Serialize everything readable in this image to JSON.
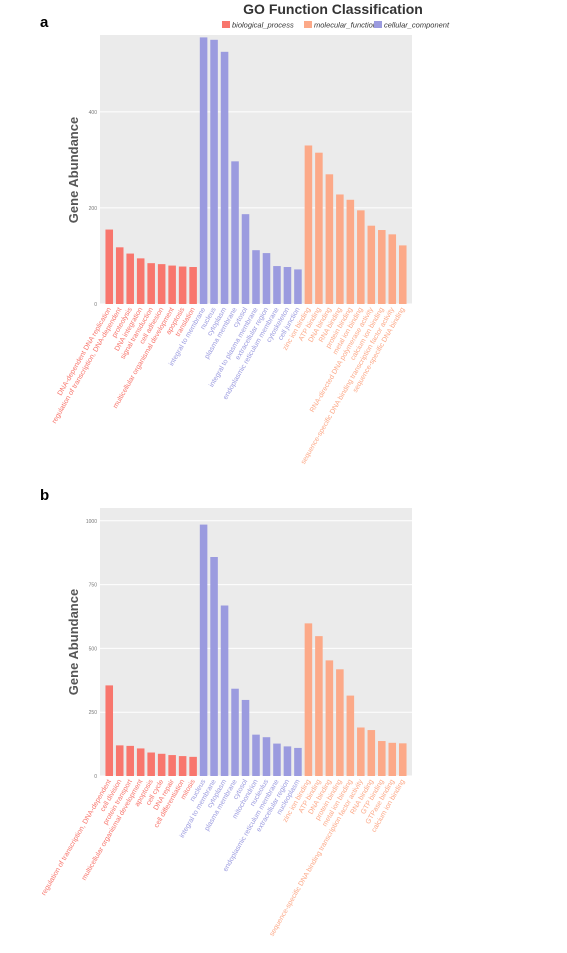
{
  "figure": {
    "title": "GO Function Classification",
    "legend": [
      {
        "name": "biological_process",
        "color": "#F8766D"
      },
      {
        "name": "molecular_function",
        "color": "#FCA988"
      },
      {
        "name": "cellular_component",
        "color": "#9B9BDF"
      }
    ]
  },
  "chart_data": [
    {
      "type": "bar",
      "panel_label": "a",
      "title": "GO Function Classification",
      "xlabel": "",
      "ylabel": "Gene Abundance",
      "ylim": [
        0,
        560
      ],
      "yticks": [
        "0",
        "200",
        "400"
      ],
      "ytick_values": [
        0,
        200,
        400
      ],
      "grid": true,
      "legend_position": "top",
      "series": [
        {
          "name": "biological_process",
          "color": "#F8766D",
          "categories": [
            "DNA-dependent DNA replication",
            "regulation of transcription, DNA-dependent",
            "proteolysis",
            "DNA integration",
            "signal transduction",
            "cell adhesion",
            "multicellular organismal development",
            "apoptosis",
            "translation"
          ],
          "values": [
            155,
            118,
            105,
            95,
            85,
            83,
            80,
            78,
            77
          ]
        },
        {
          "name": "cellular_component",
          "color": "#9B9BDF",
          "categories": [
            "integral to membrane",
            "nucleus",
            "cytoplasm",
            "plasma membrane",
            "cytosol",
            "integral to plasma membrane",
            "extracellular region",
            "endoplasmic reticulum membrane",
            "cytoskeleton",
            "cell junction"
          ],
          "values": [
            555,
            550,
            525,
            297,
            187,
            112,
            106,
            79,
            77,
            72
          ]
        },
        {
          "name": "molecular_function",
          "color": "#FCA988",
          "categories": [
            "zinc ion binding",
            "ATP binding",
            "DNA binding",
            "RNA binding",
            "protein binding",
            "metal ion binding",
            "RNA-directed DNA polymerase activity",
            "calcium ion binding",
            "sequence-specific DNA binding transcription factor activity",
            "sequence-specific DNA binding"
          ],
          "values": [
            330,
            315,
            270,
            228,
            217,
            195,
            163,
            154,
            145,
            122
          ]
        }
      ]
    },
    {
      "type": "bar",
      "panel_label": "b",
      "title": "",
      "xlabel": "",
      "ylabel": "Gene Abundance",
      "ylim": [
        0,
        1050
      ],
      "yticks": [
        "0",
        "250",
        "500",
        "750",
        "1000"
      ],
      "ytick_values": [
        0,
        250,
        500,
        750,
        1000
      ],
      "grid": true,
      "series": [
        {
          "name": "biological_process",
          "color": "#F8766D",
          "categories": [
            "regulation of transcription, DNA-dependent",
            "cell division",
            "protein transport",
            "multicellular organismal development",
            "apoptosis",
            "cell cycle",
            "DNA repair",
            "cell differentiation",
            "mitosis"
          ],
          "values": [
            355,
            120,
            118,
            108,
            92,
            87,
            82,
            78,
            75
          ]
        },
        {
          "name": "cellular_component",
          "color": "#9B9BDF",
          "categories": [
            "nucleus",
            "integral to membrane",
            "cytoplasm",
            "plasma membrane",
            "cytosol",
            "mitochondrion",
            "nucleolus",
            "endoplasmic reticulum membrane",
            "extracellular region",
            "nucleoplasm"
          ],
          "values": [
            985,
            858,
            668,
            342,
            298,
            162,
            152,
            127,
            116,
            110
          ]
        },
        {
          "name": "molecular_function",
          "color": "#FCA988",
          "categories": [
            "zinc ion binding",
            "ATP binding",
            "DNA binding",
            "protein binding",
            "metal ion binding",
            "sequence-specific DNA binding transcription factor activity",
            "RNA binding",
            "GTP binding",
            "GTPase binding",
            "calcium ion binding"
          ],
          "values": [
            598,
            548,
            453,
            418,
            315,
            190,
            180,
            137,
            130,
            128
          ]
        }
      ]
    }
  ]
}
